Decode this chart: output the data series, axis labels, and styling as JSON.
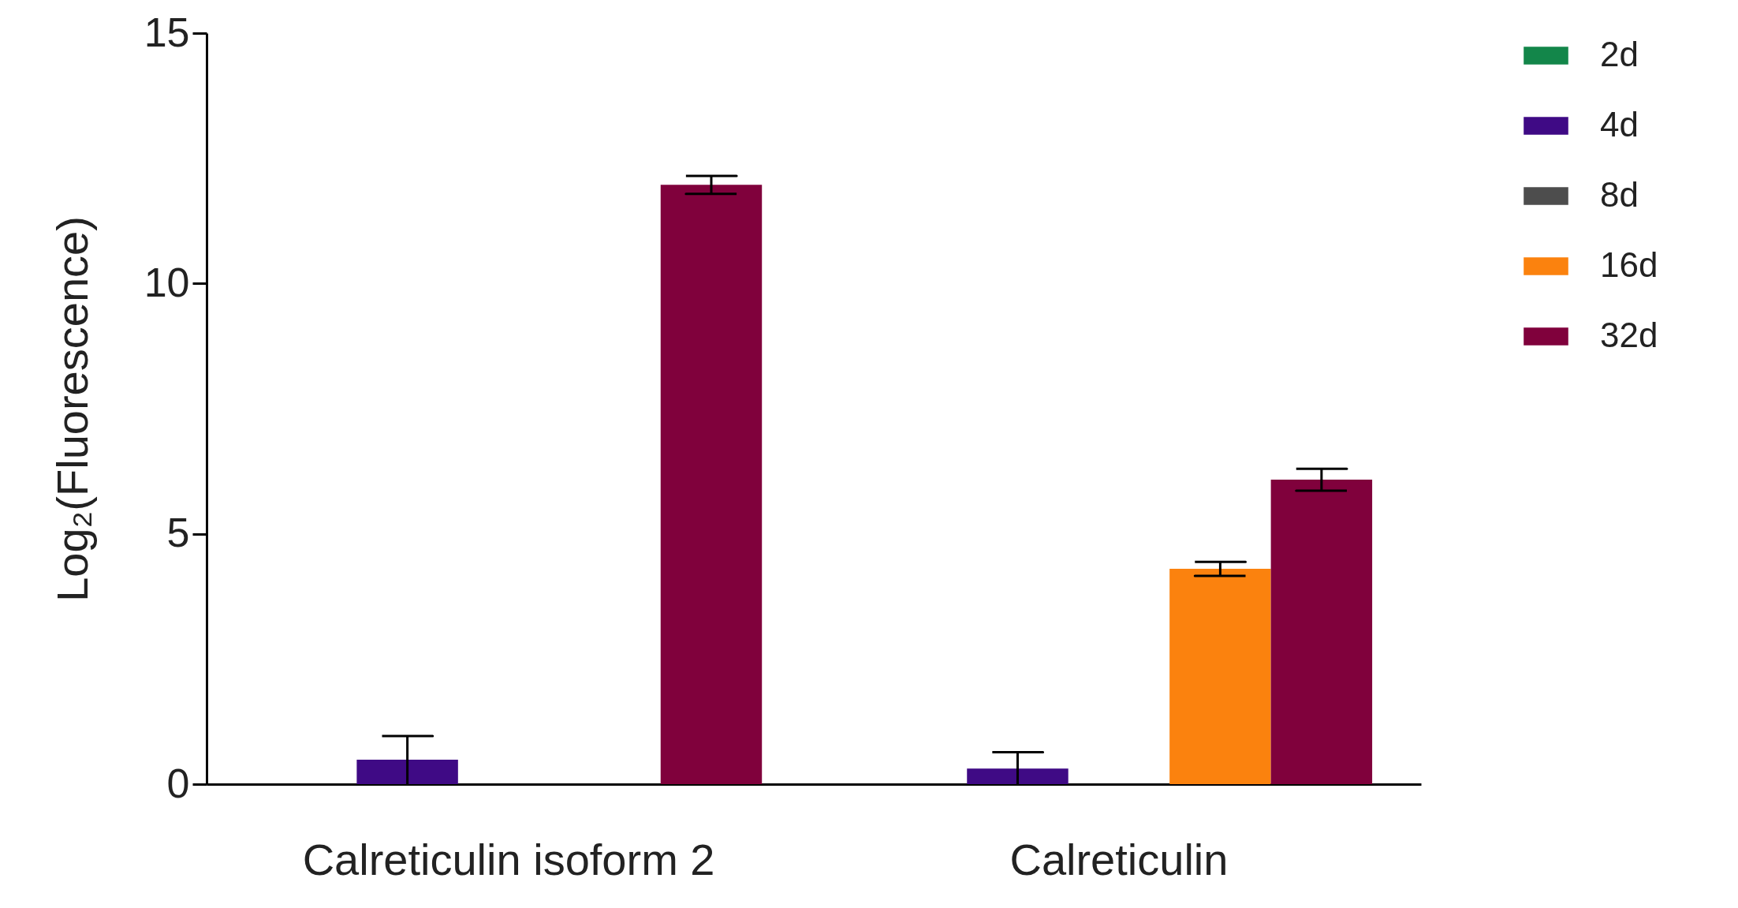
{
  "chart_data": {
    "type": "bar",
    "ylabel": "Log₂(Fluorescence)",
    "categories": [
      "Calreticulin isoform 2",
      "Calreticulin"
    ],
    "series": [
      {
        "name": "2d",
        "color": "#13864a",
        "values": [
          null,
          null
        ]
      },
      {
        "name": "4d",
        "color": "#3f0a85",
        "values": [
          0.49,
          0.31
        ],
        "errors": [
          [
            0,
            0.96
          ],
          0.33
        ]
      },
      {
        "name": "8d",
        "color": "#4d4d4d",
        "values": [
          null,
          null
        ]
      },
      {
        "name": "16d",
        "color": "#fb820e",
        "values": [
          null,
          4.3
        ],
        "errors": [
          null,
          0.14
        ]
      },
      {
        "name": "32d",
        "color": "#80013c",
        "values": [
          11.97,
          6.08
        ],
        "errors": [
          0.18,
          0.22
        ]
      }
    ],
    "ylim": [
      0,
      15
    ],
    "yticks": [
      0,
      5,
      10,
      15
    ],
    "grid": false,
    "legend": "top right"
  }
}
